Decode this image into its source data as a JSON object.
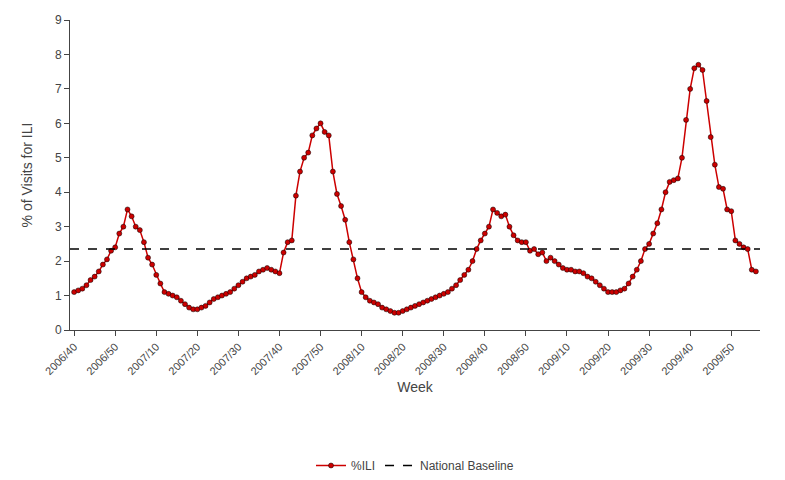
{
  "chart_data": {
    "type": "line",
    "xlabel": "Week",
    "ylabel": "% of Visits for ILI",
    "categories": [
      "2006/40",
      null,
      null,
      null,
      null,
      null,
      null,
      null,
      null,
      null,
      "2006/50",
      null,
      null,
      null,
      null,
      null,
      null,
      null,
      null,
      null,
      "2007/10",
      null,
      null,
      null,
      null,
      null,
      null,
      null,
      null,
      null,
      "2007/20",
      null,
      null,
      null,
      null,
      null,
      null,
      null,
      null,
      null,
      "2007/30",
      null,
      null,
      null,
      null,
      null,
      null,
      null,
      null,
      null,
      "2007/40",
      null,
      null,
      null,
      null,
      null,
      null,
      null,
      null,
      null,
      "2007/50",
      null,
      null,
      null,
      null,
      null,
      null,
      null,
      null,
      null,
      "2008/10",
      null,
      null,
      null,
      null,
      null,
      null,
      null,
      null,
      null,
      "2008/20",
      null,
      null,
      null,
      null,
      null,
      null,
      null,
      null,
      null,
      "2008/30",
      null,
      null,
      null,
      null,
      null,
      null,
      null,
      null,
      null,
      "2008/40",
      null,
      null,
      null,
      null,
      null,
      null,
      null,
      null,
      null,
      "2008/50",
      null,
      null,
      null,
      null,
      null,
      null,
      null,
      null,
      null,
      "2009/10",
      null,
      null,
      null,
      null,
      null,
      null,
      null,
      null,
      null,
      "2009/20",
      null,
      null,
      null,
      null,
      null,
      null,
      null,
      null,
      null,
      "2009/30",
      null,
      null,
      null,
      null,
      null,
      null,
      null,
      null,
      null,
      "2009/40",
      null,
      null,
      null,
      null,
      null,
      null,
      null,
      null,
      null,
      "2009/50",
      null,
      null,
      null,
      null,
      null,
      null
    ],
    "series": [
      {
        "name": "%ILI",
        "color": "#cc0000",
        "marker": "circle",
        "line_style": "solid",
        "values": [
          1.1,
          1.15,
          1.2,
          1.3,
          1.45,
          1.55,
          1.7,
          1.9,
          2.05,
          2.3,
          2.4,
          2.8,
          3.0,
          3.5,
          3.3,
          3.0,
          2.9,
          2.55,
          2.1,
          1.9,
          1.6,
          1.35,
          1.1,
          1.05,
          1.0,
          0.95,
          0.85,
          0.75,
          0.65,
          0.6,
          0.6,
          0.65,
          0.7,
          0.8,
          0.9,
          0.95,
          1.0,
          1.05,
          1.1,
          1.2,
          1.3,
          1.4,
          1.5,
          1.55,
          1.6,
          1.7,
          1.75,
          1.8,
          1.75,
          1.7,
          1.65,
          2.25,
          2.55,
          2.6,
          3.9,
          4.6,
          5.0,
          5.15,
          5.65,
          5.85,
          6.0,
          5.75,
          5.65,
          4.6,
          3.95,
          3.6,
          3.2,
          2.55,
          2.05,
          1.5,
          1.1,
          0.95,
          0.85,
          0.8,
          0.75,
          0.65,
          0.6,
          0.55,
          0.5,
          0.5,
          0.55,
          0.6,
          0.65,
          0.7,
          0.75,
          0.8,
          0.85,
          0.9,
          0.95,
          1.0,
          1.05,
          1.1,
          1.2,
          1.3,
          1.45,
          1.6,
          1.75,
          2.0,
          2.35,
          2.6,
          2.8,
          3.0,
          3.5,
          3.4,
          3.3,
          3.35,
          3.0,
          2.75,
          2.6,
          2.55,
          2.55,
          2.3,
          2.35,
          2.2,
          2.25,
          2.0,
          2.1,
          2.0,
          1.9,
          1.8,
          1.75,
          1.75,
          1.7,
          1.7,
          1.65,
          1.55,
          1.5,
          1.4,
          1.3,
          1.2,
          1.1,
          1.1,
          1.1,
          1.15,
          1.2,
          1.35,
          1.55,
          1.75,
          2.0,
          2.35,
          2.5,
          2.8,
          3.1,
          3.5,
          4.0,
          4.3,
          4.35,
          4.4,
          5.0,
          6.1,
          7.0,
          7.6,
          7.7,
          7.55,
          6.65,
          5.6,
          4.8,
          4.15,
          4.1,
          3.5,
          3.45,
          2.6,
          2.5,
          2.4,
          2.35,
          1.75,
          1.7
        ]
      }
    ],
    "baseline": {
      "name": "National Baseline",
      "value": 2.35,
      "color": "#000000",
      "line_style": "dashed"
    },
    "ylim": [
      0,
      9
    ],
    "yticks": [
      0,
      1,
      2,
      3,
      4,
      5,
      6,
      7,
      8,
      9
    ],
    "grid": false,
    "legend": "bottom"
  }
}
